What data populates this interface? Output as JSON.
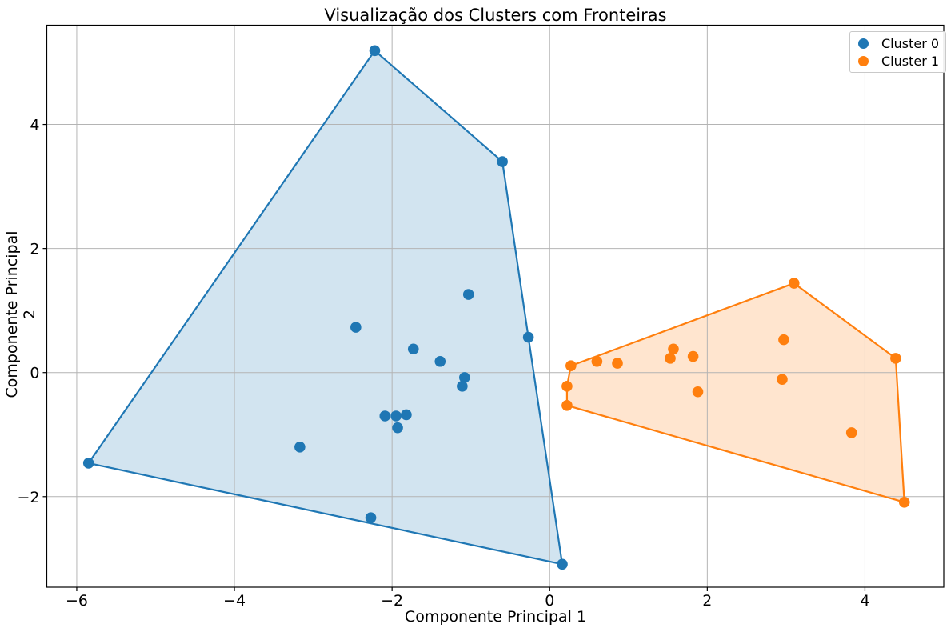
{
  "chart_data": {
    "type": "scatter",
    "title": "Visualização dos Clusters com Fronteiras",
    "xlabel": "Componente Principal 1",
    "ylabel": "Componente Principal 2",
    "xlim": [
      -6.38,
      5.0
    ],
    "ylim": [
      -3.46,
      5.6
    ],
    "xticks": [
      -6,
      -4,
      -2,
      0,
      2,
      4
    ],
    "yticks": [
      -2,
      0,
      2,
      4
    ],
    "grid": true,
    "grid_color": "#b4b4b4",
    "spine_color": "#000000",
    "legend": {
      "position": "upper right",
      "entries": [
        {
          "label": "Cluster 0",
          "color": "#1f77b4"
        },
        {
          "label": "Cluster 1",
          "color": "#ff7f0e"
        }
      ]
    },
    "series": [
      {
        "name": "Cluster 0",
        "color": "#1f77b4",
        "fill_alpha": 0.2,
        "points": [
          [
            -2.22,
            5.19
          ],
          [
            -0.6,
            3.4
          ],
          [
            -2.46,
            0.73
          ],
          [
            -1.03,
            1.26
          ],
          [
            -1.73,
            0.38
          ],
          [
            -1.39,
            0.18
          ],
          [
            -0.27,
            0.57
          ],
          [
            -1.08,
            -0.08
          ],
          [
            -1.11,
            -0.22
          ],
          [
            -2.09,
            -0.7
          ],
          [
            -1.95,
            -0.7
          ],
          [
            -1.82,
            -0.68
          ],
          [
            -1.93,
            -0.89
          ],
          [
            -3.17,
            -1.2
          ],
          [
            -2.27,
            -2.34
          ],
          [
            -5.85,
            -1.46
          ],
          [
            0.16,
            -3.09
          ]
        ],
        "hull": [
          [
            -5.85,
            -1.46
          ],
          [
            -2.22,
            5.19
          ],
          [
            -0.6,
            3.4
          ],
          [
            -0.27,
            0.57
          ],
          [
            0.16,
            -3.09
          ]
        ]
      },
      {
        "name": "Cluster 1",
        "color": "#ff7f0e",
        "fill_alpha": 0.2,
        "points": [
          [
            0.27,
            0.11
          ],
          [
            0.22,
            -0.22
          ],
          [
            0.22,
            -0.53
          ],
          [
            0.6,
            0.18
          ],
          [
            0.86,
            0.15
          ],
          [
            1.53,
            0.23
          ],
          [
            1.57,
            0.38
          ],
          [
            1.82,
            0.26
          ],
          [
            1.88,
            -0.31
          ],
          [
            2.97,
            0.53
          ],
          [
            2.95,
            -0.11
          ],
          [
            3.1,
            1.44
          ],
          [
            3.83,
            -0.97
          ],
          [
            4.39,
            0.23
          ],
          [
            4.5,
            -2.09
          ]
        ],
        "hull": [
          [
            0.27,
            0.11
          ],
          [
            3.1,
            1.44
          ],
          [
            4.39,
            0.23
          ],
          [
            4.5,
            -2.09
          ],
          [
            0.22,
            -0.53
          ],
          [
            0.22,
            -0.22
          ]
        ]
      }
    ]
  }
}
